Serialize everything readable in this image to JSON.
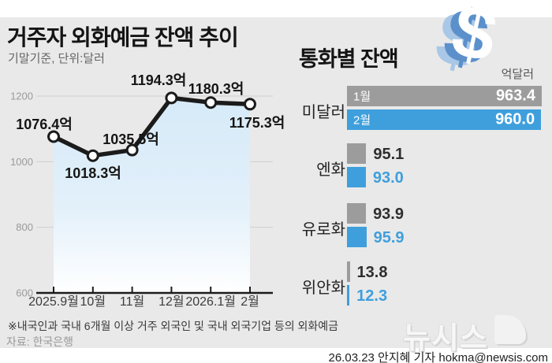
{
  "page": {
    "background_color": "#ffffff",
    "card_color": "#e9e9e9"
  },
  "chart_data": [
    {
      "type": "line",
      "title": "거주자 외화예금 잔액 추이",
      "subtitle": "기말기준, 단위:달러",
      "x": [
        "2025.9월",
        "10월",
        "11월",
        "12월",
        "2026.1월",
        "2월"
      ],
      "values": [
        1076.4,
        1018.3,
        1035.5,
        1194.3,
        1180.3,
        1175.3
      ],
      "point_labels": [
        "1076.4억",
        "1018.3억",
        "1035.5억",
        "1194.3억",
        "1180.3억",
        "1175.3억"
      ],
      "y_ticks": [
        1200,
        1000,
        800,
        600
      ],
      "ylim": [
        600,
        1200
      ],
      "grid": true,
      "line_color": "#1b1b1b",
      "marker_fill": "#ffffff",
      "area_fill_top": "#d6eaf8",
      "area_fill_bottom": "#ffffff",
      "axis_color": "#1b1b1b",
      "tick_label_color": "#9a9a9a",
      "x_label_color": "#3c3c3c"
    },
    {
      "type": "bar",
      "title": "통화별 잔액",
      "unit_label": "억달러",
      "icon": "dollar-sign-icon",
      "icon_glyph": "$",
      "categories": [
        "미달러",
        "엔화",
        "유로화",
        "위안화"
      ],
      "series": [
        {
          "name": "1월",
          "color": "#9c9c9c",
          "value_text_color": "#2e2e2e",
          "values": [
            963.4,
            95.1,
            93.9,
            13.8
          ]
        },
        {
          "name": "2월",
          "color": "#3e9fdc",
          "value_text_color": "#3e9fdc",
          "values": [
            960.0,
            93.0,
            95.9,
            12.3
          ]
        }
      ],
      "xlim": [
        0,
        963.4
      ],
      "legend_position": "inside-first-bars"
    }
  ],
  "footer": {
    "note": "※내국인과 국내 6개월 이상 거주 외국인 및 국내 외국기업 등의 외화예금",
    "source": "자료: 한국은행",
    "logo_text": "뉴시스",
    "credit": "26.03.23 안지혜 기자 hokma@newsis.com"
  }
}
